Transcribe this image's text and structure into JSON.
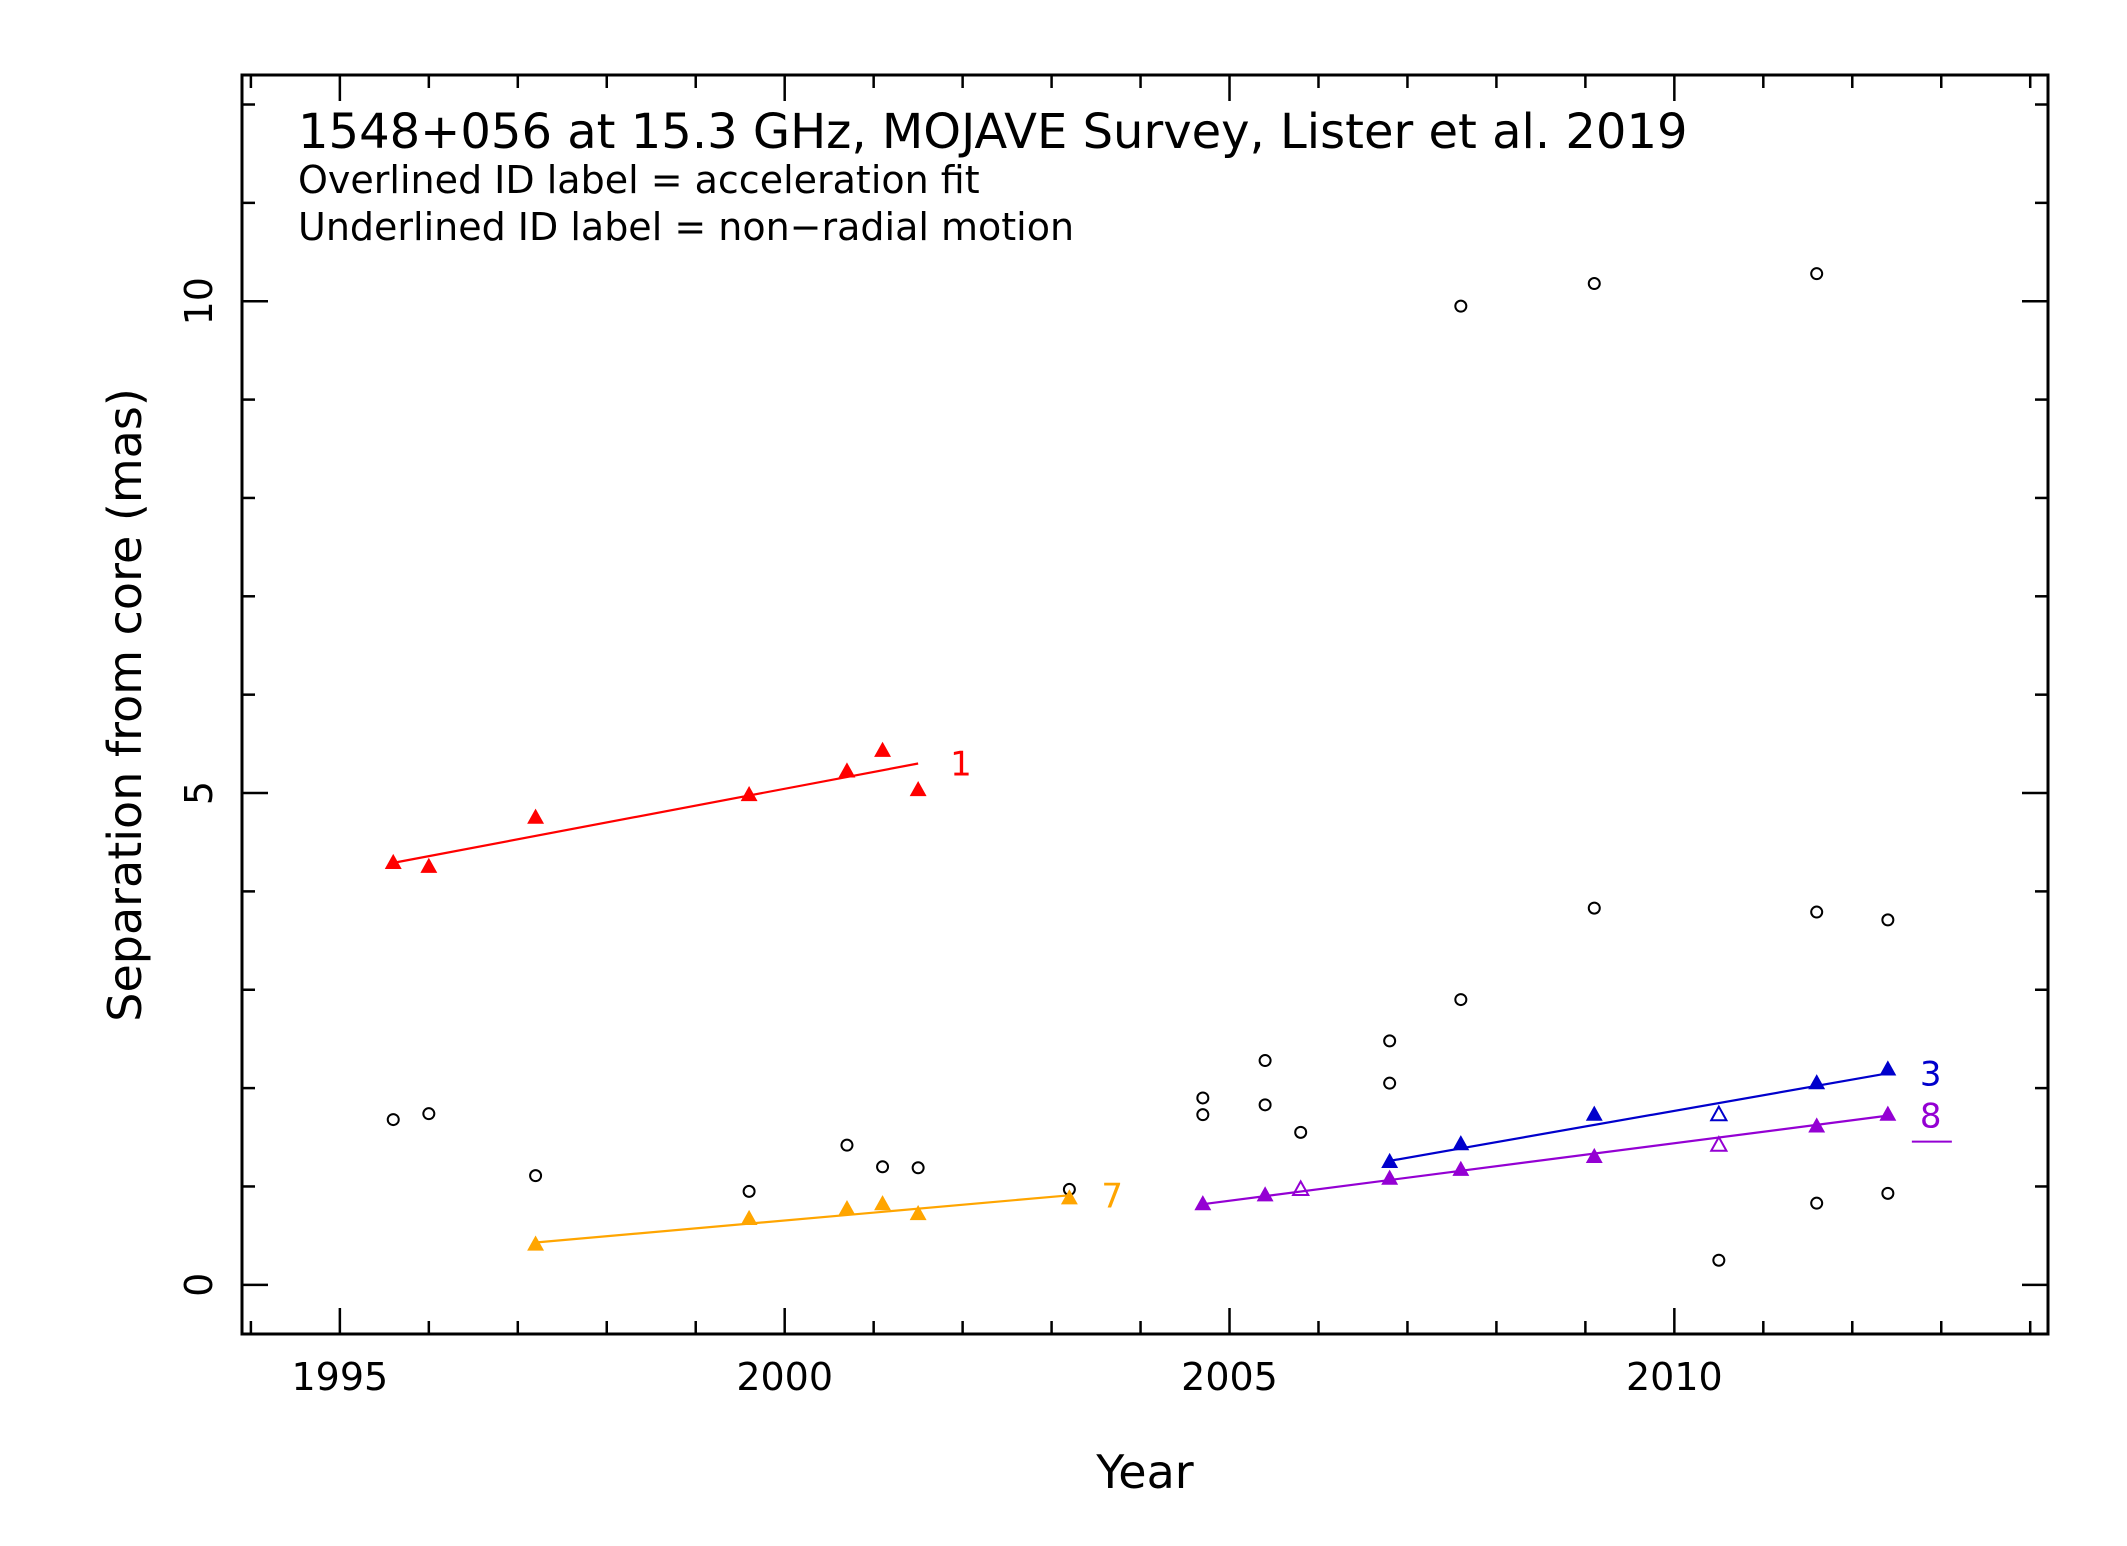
{
  "chart_data": {
    "type": "scatter",
    "title": "1548+056 at 15.3 GHz, MOJAVE Survey, Lister et al. 2019",
    "subtitle_lines": [
      "Overlined ID label = acceleration fit",
      "Underlined ID label = non−radial motion"
    ],
    "xlabel": "Year",
    "ylabel": "Separation from core (mas)",
    "xlim": [
      1993.9,
      2014.2
    ],
    "ylim": [
      -0.5,
      12.3
    ],
    "xticks_major": [
      1995,
      2000,
      2005,
      2010
    ],
    "xtick_labels": [
      "1995",
      "2000",
      "2005",
      "2010"
    ],
    "yticks_major": [
      0,
      5,
      10
    ],
    "ytick_labels": [
      "0",
      "5",
      "10"
    ],
    "grid": false,
    "unassigned_points": [
      [
        1995.6,
        1.68
      ],
      [
        1996.0,
        1.74
      ],
      [
        1997.2,
        1.11
      ],
      [
        1999.6,
        0.95
      ],
      [
        2000.7,
        1.42
      ],
      [
        2001.1,
        1.2
      ],
      [
        2001.5,
        1.19
      ],
      [
        2003.2,
        0.97
      ],
      [
        2004.7,
        1.9
      ],
      [
        2004.7,
        1.73
      ],
      [
        2005.4,
        2.28
      ],
      [
        2005.4,
        1.83
      ],
      [
        2005.8,
        1.55
      ],
      [
        2006.8,
        2.48
      ],
      [
        2006.8,
        2.05
      ],
      [
        2007.6,
        9.95
      ],
      [
        2007.6,
        2.9
      ],
      [
        2009.1,
        10.18
      ],
      [
        2009.1,
        3.83
      ],
      [
        2010.5,
        0.25
      ],
      [
        2011.6,
        10.28
      ],
      [
        2011.6,
        3.79
      ],
      [
        2011.6,
        0.83
      ],
      [
        2012.4,
        3.71
      ],
      [
        2012.4,
        0.93
      ]
    ],
    "series": [
      {
        "id": "1",
        "color": "#ff0000",
        "overlined": false,
        "underlined": false,
        "points": [
          [
            1995.6,
            4.29
          ],
          [
            1996.0,
            4.25
          ],
          [
            1997.2,
            4.75
          ],
          [
            1999.6,
            4.98
          ],
          [
            2000.7,
            5.22
          ],
          [
            2001.1,
            5.43
          ],
          [
            2001.5,
            5.03
          ]
        ],
        "open_points": [],
        "fit": [
          [
            1995.6,
            4.29
          ],
          [
            2001.5,
            5.3
          ]
        ]
      },
      {
        "id": "7",
        "color": "#ffa500",
        "overlined": false,
        "underlined": false,
        "points": [
          [
            1997.2,
            0.41
          ],
          [
            1999.6,
            0.67
          ],
          [
            2000.7,
            0.77
          ],
          [
            2001.1,
            0.82
          ],
          [
            2001.5,
            0.72
          ],
          [
            2003.2,
            0.88
          ]
        ],
        "open_points": [],
        "fit": [
          [
            1997.2,
            0.43
          ],
          [
            2003.2,
            0.91
          ]
        ]
      },
      {
        "id": "3",
        "color": "#0000cc",
        "overlined": false,
        "underlined": false,
        "points": [
          [
            2006.8,
            1.25
          ],
          [
            2007.6,
            1.43
          ],
          [
            2009.1,
            1.73
          ],
          [
            2011.6,
            2.05
          ],
          [
            2012.4,
            2.19
          ]
        ],
        "open_points": [
          [
            2010.5,
            1.73
          ]
        ],
        "fit": [
          [
            2006.8,
            1.26
          ],
          [
            2012.4,
            2.15
          ]
        ]
      },
      {
        "id": "8",
        "color": "#9400d3",
        "overlined": false,
        "underlined": true,
        "points": [
          [
            2004.7,
            0.82
          ],
          [
            2005.4,
            0.91
          ],
          [
            2006.8,
            1.08
          ],
          [
            2007.6,
            1.17
          ],
          [
            2009.1,
            1.3
          ],
          [
            2011.6,
            1.61
          ],
          [
            2012.4,
            1.73
          ]
        ],
        "open_points": [
          [
            2005.8,
            0.97
          ],
          [
            2010.5,
            1.42
          ]
        ],
        "fit": [
          [
            2004.7,
            0.82
          ],
          [
            2012.4,
            1.72
          ]
        ]
      }
    ]
  }
}
